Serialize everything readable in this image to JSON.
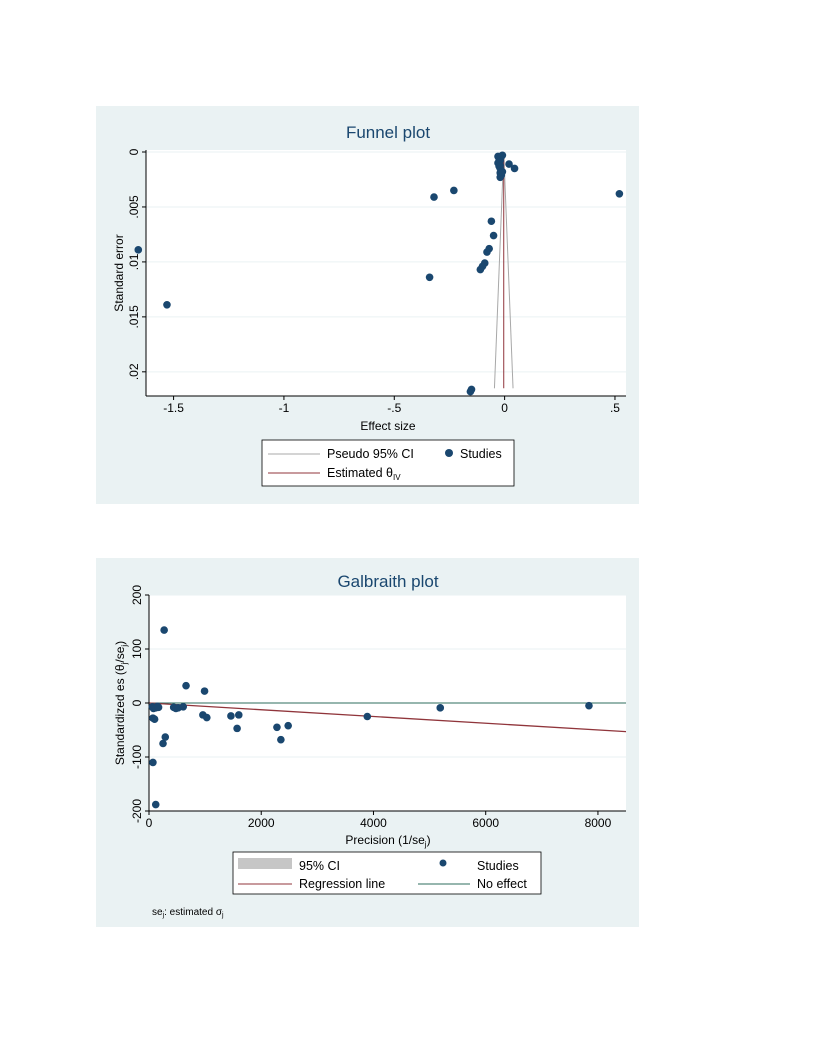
{
  "colors": {
    "panel_bg": "#eaf2f3",
    "plot_bg": "#ffffff",
    "marker": "#1a476f",
    "ci_line": "#a8a8a8",
    "estimate_line": "#90353b",
    "no_effect_line": "#2e6e5e",
    "ci_band": "#c6c6c6",
    "title": "#1a476f"
  },
  "chart_data": [
    {
      "type": "scatter",
      "title": "Funnel plot",
      "xlabel": "Effect size",
      "ylabel": "Standard error",
      "xlim": [
        -1.7,
        0.55
      ],
      "ylim": [
        0,
        0.0222
      ],
      "y_reversed": true,
      "xticks": [
        -1.5,
        -1,
        -0.5,
        0,
        0.5
      ],
      "xtick_labels": [
        "-1.5",
        "-1",
        "-.5",
        "0",
        ".5"
      ],
      "yticks": [
        0,
        0.005,
        0.01,
        0.015,
        0.02
      ],
      "ytick_labels": [
        "0",
        ".005",
        ".01",
        ".015",
        ".02"
      ],
      "grid": true,
      "legend": {
        "placement": "bottom",
        "entries": [
          {
            "label": "Pseudo 95% CI",
            "kind": "line",
            "color": "#a8a8a8"
          },
          {
            "label": "Studies",
            "kind": "marker",
            "color": "#1a476f"
          },
          {
            "label": "Estimated θ",
            "sub": "IV",
            "kind": "line",
            "color": "#90353b"
          }
        ]
      },
      "estimate": -0.004,
      "ci_bottom_se": 0.0215,
      "series": [
        {
          "points": [
            [
              -1.66,
              0.0089
            ],
            [
              -1.53,
              0.0139
            ],
            [
              -0.32,
              0.0041
            ],
            [
              -0.23,
              0.0035
            ],
            [
              -0.34,
              0.0114
            ],
            [
              -0.06,
              0.0063
            ],
            [
              -0.05,
              0.0076
            ],
            [
              -0.07,
              0.0088
            ],
            [
              -0.08,
              0.0091
            ],
            [
              -0.09,
              0.0101
            ],
            [
              -0.1,
              0.0104
            ],
            [
              -0.11,
              0.0107
            ],
            [
              -0.15,
              0.0216
            ],
            [
              -0.155,
              0.0218
            ],
            [
              -0.03,
              0.0004
            ],
            [
              -0.025,
              0.0006
            ],
            [
              -0.02,
              0.0008
            ],
            [
              -0.03,
              0.001
            ],
            [
              -0.02,
              0.0012
            ],
            [
              -0.015,
              0.0004
            ],
            [
              -0.01,
              0.0003
            ],
            [
              -0.025,
              0.0013
            ],
            [
              -0.02,
              0.0015
            ],
            [
              -0.02,
              0.0019
            ],
            [
              -0.015,
              0.0021
            ],
            [
              -0.02,
              0.0023
            ],
            [
              -0.01,
              0.0018
            ],
            [
              0.02,
              0.0011
            ],
            [
              0.045,
              0.0015
            ],
            [
              0.52,
              0.0038
            ]
          ]
        }
      ]
    },
    {
      "type": "scatter",
      "title": "Galbraith plot",
      "xlabel": "Precision (1/se",
      "xlabel_sub": "j",
      "xlabel_end": ")",
      "ylabel": "Standardized es  (θ",
      "ylabel_sub": "j",
      "ylabel_end": "/se",
      "ylabel_sub2": "j",
      "ylabel_end2": ")",
      "xlim": [
        0,
        8500
      ],
      "ylim": [
        -200,
        200
      ],
      "xticks": [
        0,
        2000,
        4000,
        6000,
        8000
      ],
      "xtick_labels": [
        "0",
        "2000",
        "4000",
        "6000",
        "8000"
      ],
      "yticks": [
        -200,
        -100,
        0,
        100,
        200
      ],
      "ytick_labels": [
        "-200",
        "-100",
        "0",
        "100",
        "200"
      ],
      "grid": true,
      "legend": {
        "placement": "bottom",
        "entries": [
          {
            "label": "95% CI",
            "kind": "band",
            "color": "#c6c6c6"
          },
          {
            "label": "Studies",
            "kind": "marker",
            "color": "#1a476f"
          },
          {
            "label": "Regression line",
            "kind": "line",
            "color": "#90353b"
          },
          {
            "label": "No effect",
            "kind": "line",
            "color": "#2e6e5e"
          }
        ]
      },
      "regression_line": {
        "x": [
          0,
          8500
        ],
        "y": [
          0,
          -53
        ]
      },
      "no_effect_y": 0,
      "note": "se",
      "note_sub": "j",
      "note_end": ": estimated σ",
      "note_sub2": "j",
      "series": [
        {
          "points": [
            [
              60,
              -7
            ],
            [
              80,
              -10
            ],
            [
              100,
              -8
            ],
            [
              120,
              -9
            ],
            [
              150,
              -6
            ],
            [
              170,
              -8
            ],
            [
              70,
              -28
            ],
            [
              100,
              -30
            ],
            [
              270,
              135
            ],
            [
              660,
              32
            ],
            [
              990,
              22
            ],
            [
              250,
              -75
            ],
            [
              290,
              -63
            ],
            [
              70,
              -110
            ],
            [
              120,
              -188
            ],
            [
              440,
              -8
            ],
            [
              480,
              -10
            ],
            [
              520,
              -9
            ],
            [
              610,
              -7
            ],
            [
              960,
              -22
            ],
            [
              1030,
              -27
            ],
            [
              1460,
              -24
            ],
            [
              1600,
              -22
            ],
            [
              1570,
              -47
            ],
            [
              2280,
              -45
            ],
            [
              2350,
              -68
            ],
            [
              2480,
              -42
            ],
            [
              3890,
              -25
            ],
            [
              5190,
              -9
            ],
            [
              7840,
              -5
            ]
          ]
        }
      ]
    }
  ]
}
